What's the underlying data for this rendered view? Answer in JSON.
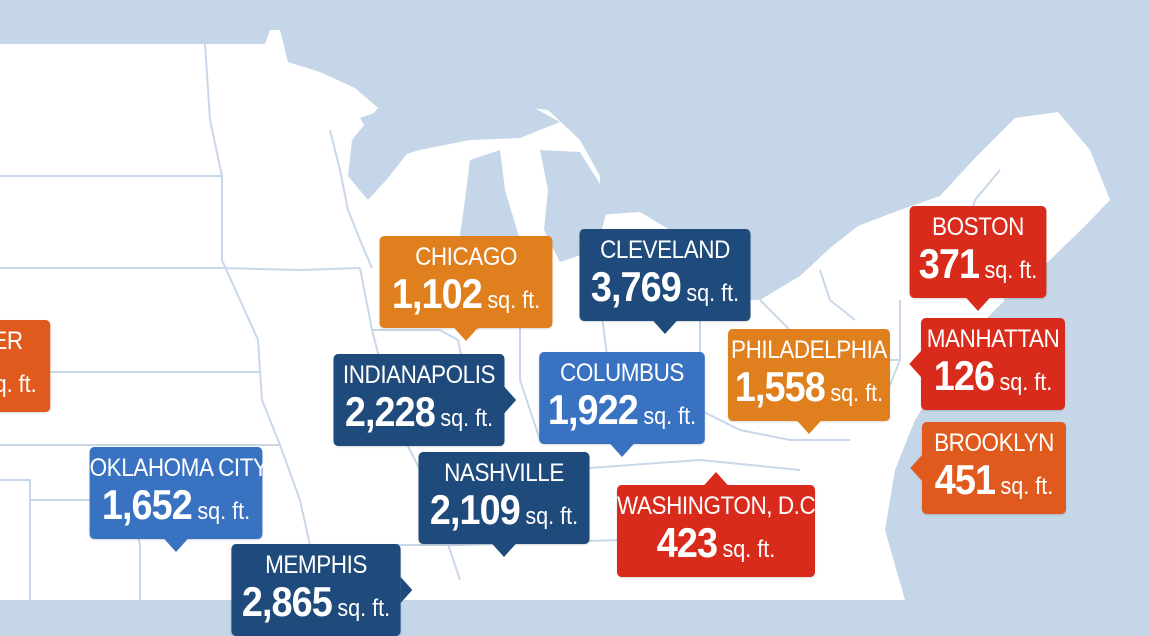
{
  "unit": "sq. ft.",
  "colors": {
    "water": "#c4d6e8",
    "land": "#ffffff",
    "state_border": "#c9d8e8",
    "red": "#d92b1c",
    "orange_red": "#e05a1d",
    "orange": "#e07f1e",
    "dark_blue": "#1f4a7c",
    "mid_blue": "#3a72c2"
  },
  "markers": [
    {
      "id": "chicago",
      "city": "CHICAGO",
      "value": "1,102",
      "color": "orange",
      "pointer": "down"
    },
    {
      "id": "cleveland",
      "city": "CLEVELAND",
      "value": "3,769",
      "color": "dark_blue",
      "pointer": "down"
    },
    {
      "id": "boston",
      "city": "BOSTON",
      "value": "371",
      "color": "red",
      "pointer": "down"
    },
    {
      "id": "manhattan",
      "city": "MANHATTAN",
      "value": "126",
      "color": "red",
      "pointer": "left"
    },
    {
      "id": "philadelphia",
      "city": "PHILADELPHIA",
      "value": "1,558",
      "color": "orange",
      "pointer": "down"
    },
    {
      "id": "brooklyn",
      "city": "BROOKLYN",
      "value": "451",
      "color": "orange_red",
      "pointer": "left"
    },
    {
      "id": "indianapolis",
      "city": "INDIANAPOLIS",
      "value": "2,228",
      "color": "dark_blue",
      "pointer": "right"
    },
    {
      "id": "columbus",
      "city": "COLUMBUS",
      "value": "1,922",
      "color": "mid_blue",
      "pointer": "down"
    },
    {
      "id": "oklahoma_city",
      "city": "OKLAHOMA CITY",
      "value": "1,652",
      "color": "mid_blue",
      "pointer": "down"
    },
    {
      "id": "nashville",
      "city": "NASHVILLE",
      "value": "2,109",
      "color": "dark_blue",
      "pointer": "down"
    },
    {
      "id": "washington_dc",
      "city": "WASHINGTON, D.C.",
      "value": "423",
      "color": "red",
      "pointer": "up"
    },
    {
      "id": "memphis",
      "city": "MEMPHIS",
      "value": "2,865",
      "color": "dark_blue",
      "pointer": "right"
    },
    {
      "id": "partial_left",
      "city": "ER",
      "value": "",
      "color": "orange_red",
      "pointer": "none"
    }
  ]
}
